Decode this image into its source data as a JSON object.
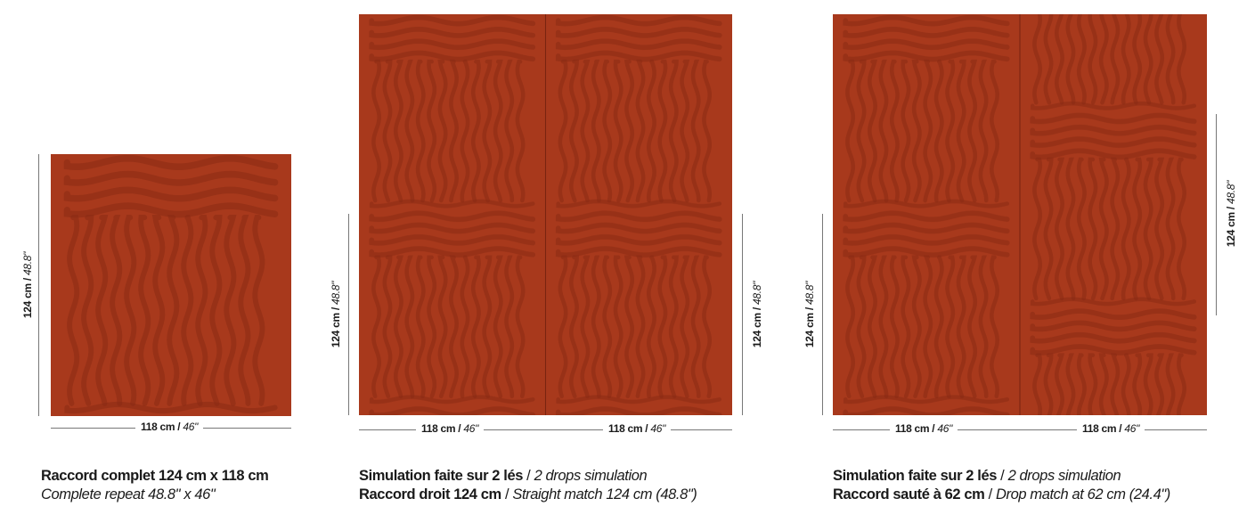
{
  "colors": {
    "base": "#a8391c",
    "motif": "#8a2a12"
  },
  "sample": {
    "height_label_cm": "124 cm",
    "height_label_in": "48.8\"",
    "width_label_cm": "118 cm",
    "width_label_in": "46\"",
    "caption_fr": "Raccord complet 124 cm x 118 cm",
    "caption_en": "Complete repeat 48.8\" x 46\""
  },
  "straight": {
    "height_label_cm": "124 cm",
    "height_label_in": "48.8\"",
    "width_label_cm": "118 cm",
    "width_label_in": "46\"",
    "caption1_fr": "Simulation faite sur 2 lés",
    "caption1_en": "2 drops simulation",
    "caption2_fr": "Raccord droit 124 cm",
    "caption2_en": "Straight match 124 cm (48.8\")"
  },
  "drop": {
    "height_label_cm": "124 cm",
    "height_label_in": "48.8\"",
    "width_label_cm": "118 cm",
    "width_label_in": "46\"",
    "caption1_fr": "Simulation faite sur 2 lés",
    "caption1_en": "2 drops simulation",
    "caption2_fr": "Raccord sauté à 62 cm",
    "caption2_en": "Drop match at 62 cm (24.4\")"
  },
  "separator": " / "
}
